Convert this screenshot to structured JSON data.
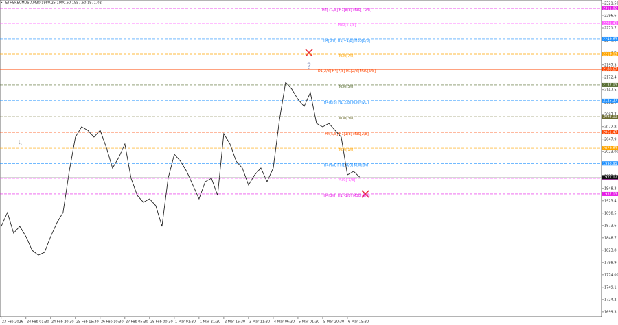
{
  "chart_data": {
    "type": "line",
    "title": "ETHEREUMUSD,M30  1980.25 1980.60 1957.60 1971.02",
    "x": [
      0,
      1,
      2,
      3,
      4,
      5,
      6,
      7,
      8,
      9,
      10,
      11,
      12,
      13,
      14,
      15,
      16,
      17,
      18,
      19,
      20,
      21,
      22,
      23,
      24,
      25,
      26,
      27,
      28,
      29,
      30,
      31,
      32,
      33,
      34,
      35,
      36,
      37,
      38,
      39,
      40,
      41,
      42,
      43,
      44,
      45,
      46,
      47,
      48,
      49,
      50,
      51,
      52,
      53,
      54,
      55,
      56,
      57,
      58
    ],
    "series": [
      {
        "color": "#222222",
        "values": [
          1872,
          1899.7,
          1858.2,
          1872,
          1851.3,
          1823.6,
          1813.9,
          1819.5,
          1851.3,
          1878.9,
          1899.7,
          1982.7,
          2051.8,
          2072.6,
          2065.6,
          2051.8,
          2065.6,
          2031.1,
          1989.6,
          2010.3,
          2038,
          1968.8,
          1934.3,
          1920.4,
          1927.3,
          1913.5,
          1872,
          1968.8,
          2017.2,
          2003.4,
          1982.7,
          1955,
          1927.3,
          1961.9,
          1968.8,
          1934.3,
          2058.7,
          2038,
          2003.4,
          1989.6,
          1955,
          1975.7,
          1989.6,
          1961.9,
          1989.6,
          2086.4,
          2162.5,
          2148.6,
          2127.9,
          2114,
          2141.7,
          2079.5,
          2072.6,
          2079.5,
          2065.6,
          2051.8,
          1975.7,
          1982.7,
          1971.02
        ]
      }
    ],
    "xlim": [
      -0.2,
      97.1
    ],
    "xticks": [
      {
        "value": 0,
        "label": "23 Feb 2026"
      },
      {
        "value": 4,
        "label": "24 Feb 01:30"
      },
      {
        "value": 8,
        "label": "24 Feb 20:30"
      },
      {
        "value": 12,
        "label": "25 Feb 15:30"
      },
      {
        "value": 16,
        "label": "26 Feb 10:30"
      },
      {
        "value": 20,
        "label": "27 Feb 05:30"
      },
      {
        "value": 24,
        "label": "28 Feb 00:30"
      },
      {
        "value": 28,
        "label": "1 Mar 01:30"
      },
      {
        "value": 32,
        "label": "1 Mar 21:30"
      },
      {
        "value": 36,
        "label": "2 Mar 16:30"
      },
      {
        "value": 40,
        "label": "3 Mar 11:30"
      },
      {
        "value": 44,
        "label": "4 Mar 06:30"
      },
      {
        "value": 48,
        "label": "5 Mar 01:30"
      },
      {
        "value": 52,
        "label": "5 Mar 20:30"
      },
      {
        "value": 56,
        "label": "6 Mar 15:30"
      }
    ],
    "ylim": [
      1689.5,
      2328.4
    ],
    "yticks": [
      {
        "value": 2321.5,
        "label": "2321.50"
      },
      2296.6,
      2271.7,
      2246.8,
      2221.9,
      2197.3,
      2172.4,
      2147.5,
      2122.6,
      2097.7,
      2072.8,
      2047.9,
      {
        "value": 2023,
        "label": "2023.00"
      },
      1998.1,
      1973.2,
      1948.3,
      1923.4,
      1898.5,
      1873.6,
      1848.7,
      1823.8,
      1798.9,
      {
        "value": 1774,
        "label": "1774.00"
      },
      1749.1,
      1724.2,
      1699.3
    ],
    "levels": [
      {
        "name": "H4[+1/8] H1[8/8] M30[+2/8]",
        "value": 2311.82,
        "color": "#e619e6"
      },
      {
        "name": "M30[+1/8]",
        "value": 2281.43,
        "color": "#ff55ff"
      },
      {
        "name": "H4[8/8] H1[+1/8] M30[8/8]",
        "value": 2249.63,
        "color": "#1e90ff"
      },
      {
        "name": "M30[7/8]",
        "value": 2219.13,
        "color": "#ffa500"
      },
      {
        "name": "D1[2/8] H4[7/8] H1[2/8] M30[6/8]",
        "value": 2188.67,
        "color": "#ff4500",
        "solid": true
      },
      {
        "name": "M30[5/8]",
        "value": 2157.03,
        "color": "#556b2f"
      },
      {
        "name": "H4[6/8] H1[2/8] M30PIVOT",
        "value": 2125.27,
        "color": "#1e90ff"
      },
      {
        "name": "M30[3/8]",
        "value": 2093.11,
        "color": "#6b6b2f"
      },
      {
        "name": "H4[5/8] H1[1/8] M30[2/8]",
        "value": 2061.47,
        "color": "#ff4500"
      },
      {
        "name": "M30[1/8]",
        "value": 2029.63,
        "color": "#ffa500"
      },
      {
        "name": "H4PIVOT H1[0/8] M30[0/8]",
        "value": 1998.91,
        "color": "#1e90ff"
      },
      {
        "name": "M30[-1/8]",
        "value": 1968.83,
        "color": "#ff55ff"
      },
      {
        "name": "H4[3/8] H1[-1/8] M30[-2/8]",
        "value": 1937.13,
        "color": "#e619e6"
      }
    ],
    "last_price": 1971.02,
    "grid": false
  }
}
